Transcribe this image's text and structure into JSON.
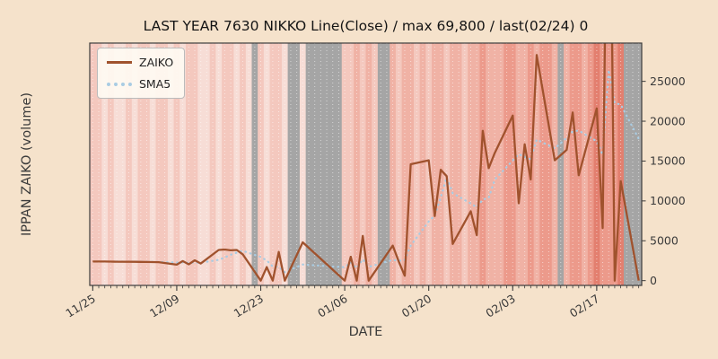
{
  "chart_data": {
    "type": "line",
    "title": "LAST YEAR 7630 NIKKO Line(Close) / max 69,800 / last(02/24) 0",
    "xlabel": "DATE",
    "ylabel": "IPPAN ZAIKO (volume)",
    "x_tick_labels": [
      "11/25",
      "12/09",
      "12/23",
      "01/06",
      "01/20",
      "02/03",
      "02/17"
    ],
    "x_tick_days": [
      0,
      14,
      28,
      42,
      56,
      70,
      84
    ],
    "y_ticks": [
      0,
      5000,
      10000,
      15000,
      20000,
      25000
    ],
    "ylim": [
      -600,
      29800
    ],
    "xlim": [
      -0.5,
      91.5
    ],
    "legend_position": "upper left",
    "grid": "white dotted vertical line per day",
    "max_value_noted_in_title": 69800,
    "last_value": {
      "date": "02/24",
      "value": 0
    },
    "series": [
      {
        "name": "ZAIKO",
        "color": "#A0522D",
        "line_style": "solid",
        "points": [
          [
            "11/25",
            0,
            2400
          ],
          [
            "11/26",
            1,
            2400
          ],
          [
            "11/27",
            2,
            2400
          ],
          [
            "11/28",
            3,
            2380
          ],
          [
            "11/29",
            4,
            2370
          ],
          [
            "12/02",
            7,
            2360
          ],
          [
            "12/03",
            8,
            2350
          ],
          [
            "12/04",
            9,
            2340
          ],
          [
            "12/05",
            10,
            2330
          ],
          [
            "12/06",
            11,
            2320
          ],
          [
            "12/09",
            14,
            2000
          ],
          [
            "12/10",
            15,
            2450
          ],
          [
            "12/11",
            16,
            2050
          ],
          [
            "12/12",
            17,
            2550
          ],
          [
            "12/13",
            18,
            2150
          ],
          [
            "12/16",
            21,
            3850
          ],
          [
            "12/17",
            22,
            3900
          ],
          [
            "12/18",
            23,
            3800
          ],
          [
            "12/19",
            24,
            3850
          ],
          [
            "12/20",
            25,
            3300
          ],
          [
            "12/23",
            28,
            0
          ],
          [
            "12/24",
            29,
            1700
          ],
          [
            "12/25",
            30,
            0
          ],
          [
            "12/26",
            31,
            3600
          ],
          [
            "12/27",
            32,
            0
          ],
          [
            "12/30",
            35,
            4800
          ],
          [
            "01/06",
            42,
            0
          ],
          [
            "01/07",
            43,
            3000
          ],
          [
            "01/08",
            44,
            0
          ],
          [
            "01/09",
            45,
            5600
          ],
          [
            "01/10",
            46,
            0
          ],
          [
            "01/14",
            50,
            4400
          ],
          [
            "01/15",
            51,
            2400
          ],
          [
            "01/16",
            52,
            600
          ],
          [
            "01/17",
            53,
            14600
          ],
          [
            "01/20",
            56,
            15100
          ],
          [
            "01/21",
            57,
            8100
          ],
          [
            "01/22",
            58,
            13900
          ],
          [
            "01/23",
            59,
            13100
          ],
          [
            "01/24",
            60,
            4600
          ],
          [
            "01/27",
            63,
            8700
          ],
          [
            "01/28",
            64,
            5700
          ],
          [
            "01/29",
            65,
            18800
          ],
          [
            "01/30",
            66,
            14100
          ],
          [
            "01/31",
            67,
            16000
          ],
          [
            "02/03",
            70,
            20700
          ],
          [
            "02/04",
            71,
            9700
          ],
          [
            "02/05",
            72,
            17100
          ],
          [
            "02/06",
            73,
            12700
          ],
          [
            "02/07",
            74,
            28300
          ],
          [
            "02/10",
            77,
            15100
          ],
          [
            "02/12",
            79,
            16400
          ],
          [
            "02/13",
            80,
            21100
          ],
          [
            "02/14",
            81,
            13200
          ],
          [
            "02/17",
            84,
            21600
          ],
          [
            "02/18",
            85,
            6600
          ],
          [
            "02/19",
            86,
            69800
          ],
          [
            "02/20",
            87,
            0
          ],
          [
            "02/21",
            88,
            12500
          ],
          [
            "02/24",
            91,
            0
          ]
        ]
      },
      {
        "name": "SMA5",
        "color": "#A9CCE3",
        "line_style": "dotted",
        "derived": "5-point moving average of ZAIKO"
      }
    ],
    "background": {
      "figure_color": "#F5E2CB",
      "stripe_palette": [
        "#F7DDD6",
        "#F4C8BE",
        "#F0B2A5",
        "#EC9A8B",
        "#E37F6F"
      ],
      "stripe_intensity_per_day": "11010010110110101100101101011011011010111211212112212212122122122322233223233232332343334333",
      "gray_band_color": "#A5A5A5",
      "gray_days": [
        27,
        33,
        34,
        36,
        37,
        38,
        39,
        40,
        41,
        48,
        49,
        78,
        89,
        90,
        91
      ],
      "gray_day_dates": [
        "12/22",
        "12/28",
        "12/29",
        "12/31",
        "01/01",
        "01/02",
        "01/03",
        "01/04",
        "01/05",
        "01/12",
        "01/13",
        "02/11",
        "02/22",
        "02/23",
        "02/24"
      ]
    }
  }
}
